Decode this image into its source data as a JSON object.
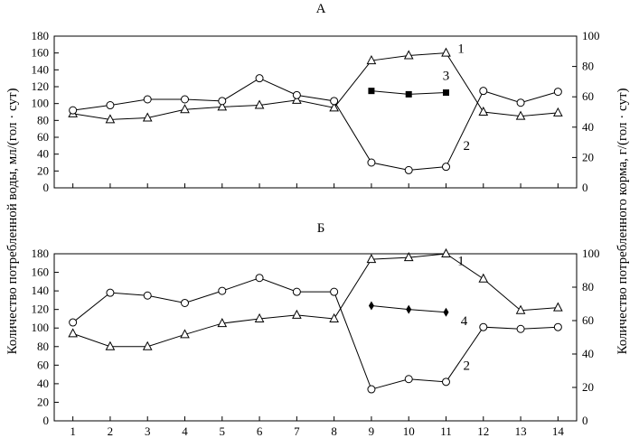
{
  "chart_data": {
    "type": "line",
    "left_axis_label": "Количество потребленной воды,  мл/(гол · сут)",
    "right_axis_label": "Количество потребленного корма,  г/(гол · сут)",
    "x_ticks": [
      "1",
      "2",
      "3",
      "4",
      "5",
      "6",
      "7",
      "8",
      "9",
      "10",
      "11",
      "12",
      "13",
      "14"
    ],
    "left_ticks": [
      "0",
      "20",
      "40",
      "60",
      "80",
      "100",
      "120",
      "140",
      "160",
      "180"
    ],
    "right_ticks": [
      "0",
      "20",
      "40",
      "60",
      "80",
      "100"
    ],
    "left_ylim": [
      0,
      180
    ],
    "right_ylim": [
      0,
      100
    ],
    "panels": [
      {
        "title": "А",
        "series": [
          {
            "name": "1",
            "marker": "triangle",
            "axis": "left",
            "x": [
              1,
              2,
              3,
              4,
              5,
              6,
              7,
              8,
              9,
              10,
              11,
              12,
              13,
              14
            ],
            "values": [
              88,
              81,
              83,
              93,
              96,
              98,
              104,
              95,
              151,
              157,
              160,
              90,
              85,
              89
            ]
          },
          {
            "name": "2",
            "marker": "circle",
            "axis": "left",
            "x": [
              1,
              2,
              3,
              4,
              5,
              6,
              7,
              8,
              9,
              10,
              11,
              12,
              13,
              14
            ],
            "values": [
              92,
              98,
              105,
              105,
              103,
              130,
              110,
              103,
              30,
              21,
              25,
              115,
              101,
              114
            ]
          },
          {
            "name": "3",
            "marker": "square",
            "axis": "left",
            "x": [
              9,
              10,
              11
            ],
            "values": [
              115,
              111,
              113
            ]
          }
        ]
      },
      {
        "title": "Б",
        "series": [
          {
            "name": "1",
            "marker": "triangle",
            "axis": "left",
            "x": [
              1,
              2,
              3,
              4,
              5,
              6,
              7,
              8,
              9,
              10,
              11,
              12,
              13,
              14
            ],
            "values": [
              94,
              80,
              80,
              93,
              105,
              110,
              114,
              110,
              174,
              176,
              180,
              153,
              119,
              122
            ]
          },
          {
            "name": "2",
            "marker": "circle",
            "axis": "left",
            "x": [
              1,
              2,
              3,
              4,
              5,
              6,
              7,
              8,
              9,
              10,
              11,
              12,
              13,
              14
            ],
            "values": [
              106,
              138,
              135,
              127,
              140,
              154,
              139,
              139,
              34,
              45,
              42,
              101,
              99,
              101
            ]
          },
          {
            "name": "4",
            "marker": "diamond",
            "axis": "left",
            "x": [
              9,
              10,
              11
            ],
            "values": [
              124,
              120,
              117
            ]
          }
        ]
      }
    ]
  }
}
